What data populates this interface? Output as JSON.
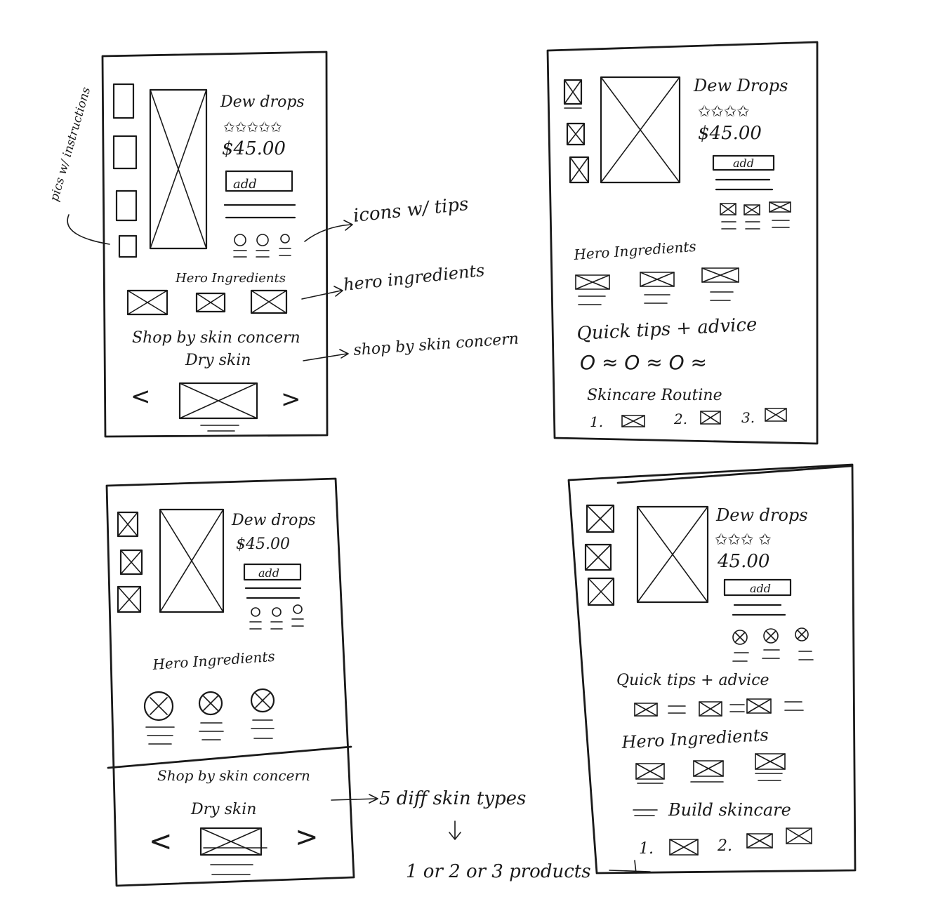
{
  "annotations": {
    "pics_instructions": "pics w/ instructions",
    "icons_tips": "icons w/ tips",
    "hero_ingredients": "hero ingredients",
    "shop_concern": "shop by skin concern",
    "diff_types": "5 diff skin types",
    "products_count": "1 or 2 or 3 products"
  },
  "sketch_a": {
    "product_name": "Dew drops",
    "stars": "✩✩✩✩✩",
    "price": "$45.00",
    "add_label": "add",
    "hero_heading": "Hero Ingredients",
    "concern_heading": "Shop by skin concern",
    "concern_value": "Dry skin",
    "prev": "<",
    "next": ">"
  },
  "sketch_b": {
    "product_name": "Dew Drops",
    "stars": "✩✩✩✩",
    "price": "$45.00",
    "add_label": "add",
    "hero_heading": "Hero Ingredients",
    "tips_heading": "Quick tips + advice",
    "tips_row": "O ≈   O ≈   O ≈",
    "routine_heading": "Skincare Routine",
    "routine_1": "1.",
    "routine_2": "2.",
    "routine_3": "3."
  },
  "sketch_c": {
    "product_name": "Dew drops",
    "price": "$45.00",
    "add_label": "add",
    "hero_heading": "Hero Ingredients",
    "concern_heading": "Shop by skin concern",
    "concern_value": "Dry skin",
    "prev": "<",
    "next": ">"
  },
  "sketch_d": {
    "product_name": "Dew drops",
    "stars": "✩✩✩ ✩",
    "price": "45.00",
    "add_label": "add",
    "tips_heading": "Quick tips + advice",
    "hero_heading": "Hero Ingredients",
    "build_heading": "Build skincare",
    "build_1": "1.",
    "build_2": "2."
  }
}
